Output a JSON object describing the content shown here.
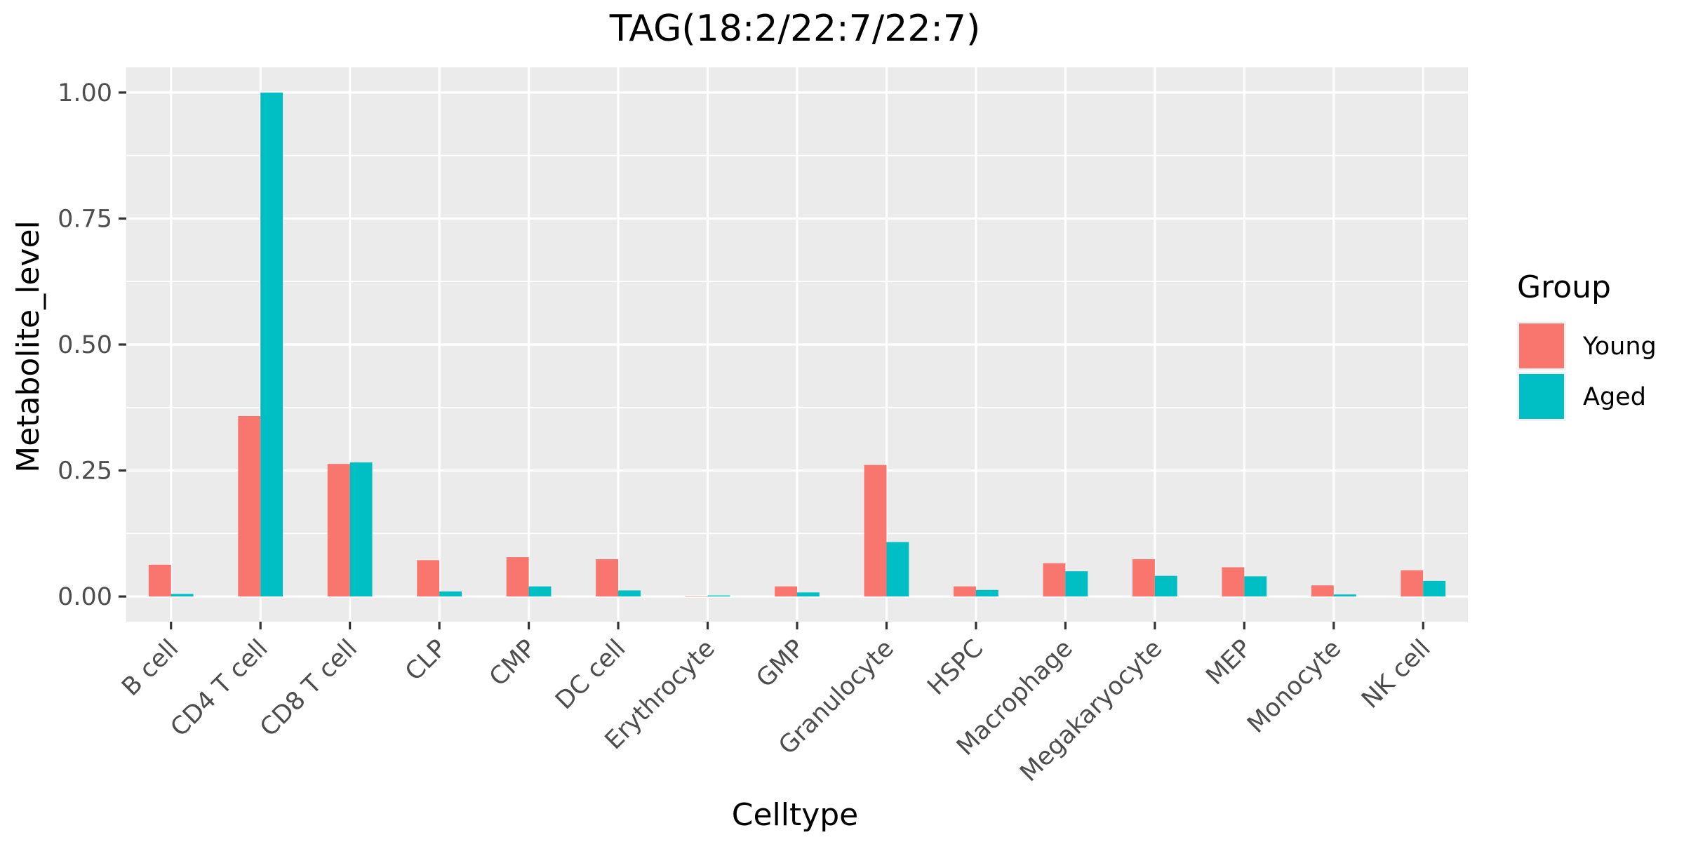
{
  "chart_data": {
    "type": "bar",
    "title": "TAG(18:2/22:7/22:7)",
    "xlabel": "Celltype",
    "ylabel": "Metabolite_level",
    "ylim": [
      -0.05,
      1.05
    ],
    "yticks": [
      0.0,
      0.25,
      0.5,
      0.75,
      1.0
    ],
    "ytick_labels": [
      "0.00",
      "0.25",
      "0.50",
      "0.75",
      "1.00"
    ],
    "grid": true,
    "legend": {
      "title": "Group",
      "position": "right"
    },
    "categories": [
      "B cell",
      "CD4 T cell",
      "CD8 T cell",
      "CLP",
      "CMP",
      "DC cell",
      "Erythrocyte",
      "GMP",
      "Granulocyte",
      "HSPC",
      "Macrophage",
      "Megakaryocyte",
      "MEP",
      "Monocyte",
      "NK cell"
    ],
    "series": [
      {
        "name": "Young",
        "color": "#F8766D",
        "values": [
          0.063,
          0.358,
          0.263,
          0.072,
          0.078,
          0.074,
          0.0,
          0.02,
          0.261,
          0.02,
          0.066,
          0.074,
          0.058,
          0.022,
          0.052
        ]
      },
      {
        "name": "Aged",
        "color": "#00BFC4",
        "values": [
          0.005,
          1.0,
          0.266,
          0.01,
          0.02,
          0.012,
          0.002,
          0.008,
          0.108,
          0.013,
          0.05,
          0.041,
          0.04,
          0.004,
          0.031
        ]
      }
    ]
  }
}
